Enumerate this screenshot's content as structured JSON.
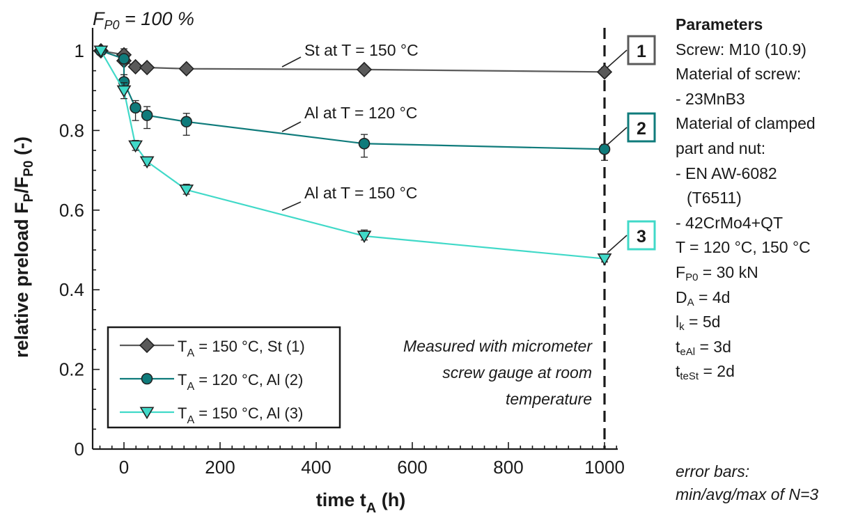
{
  "chart_data": {
    "type": "line",
    "fp0_label": "F",
    "fp0_sub": "P0",
    "fp0_rest": " = 100 %",
    "xlabel": {
      "main": "time t",
      "sub": "A",
      "rest": " (h)"
    },
    "ylabel": {
      "main": "relative preload F",
      "sub1": "P",
      "mid": "/F",
      "sub2": "P0",
      "rest": " (-)"
    },
    "xlim": [
      -60,
      1050
    ],
    "ylim": [
      0,
      1.05
    ],
    "xticks": [
      0,
      200,
      400,
      600,
      800,
      1000
    ],
    "yticks": [
      0,
      0.2,
      0.4,
      0.6,
      0.8,
      1
    ],
    "xtick_labels": [
      "0",
      "200",
      "400",
      "600",
      "800",
      "1000"
    ],
    "ytick_labels": [
      "0",
      "0.2",
      "0.4",
      "0.6",
      "0.8",
      "1"
    ],
    "grid": false,
    "legend_position": "bottom-left",
    "series": [
      {
        "name": "St (1)",
        "legend_T": "T",
        "legend_sub": "A",
        "legend_rest": " = 150 °C, St (1)",
        "color": "#5a5a5a",
        "marker": "diamond",
        "x": [
          -48,
          0,
          0,
          24,
          48,
          130,
          500,
          1000
        ],
        "y": [
          1.0,
          0.99,
          0.975,
          0.96,
          0.958,
          0.955,
          0.953,
          0.947
        ],
        "err_low": [
          0.99,
          0.975,
          0.965,
          0.955,
          0.952,
          0.945,
          0.945,
          0.938
        ],
        "err_high": [
          1.005,
          1.005,
          0.99,
          0.968,
          0.965,
          0.965,
          0.962,
          0.958
        ],
        "annotation": "St at T = 150 °C",
        "box_label": "1"
      },
      {
        "name": "Al (2)",
        "legend_T": "T",
        "legend_sub": "A",
        "legend_rest": " = 120 °C, Al (2)",
        "color": "#0f7b7b",
        "marker": "circle",
        "x": [
          -48,
          0,
          0,
          24,
          48,
          130,
          500,
          1000
        ],
        "y": [
          1.0,
          0.98,
          0.922,
          0.857,
          0.838,
          0.822,
          0.767,
          0.753
        ],
        "err_low": [
          0.99,
          0.97,
          0.905,
          0.825,
          0.805,
          0.788,
          0.733,
          0.725
        ],
        "err_high": [
          1.005,
          0.99,
          0.94,
          0.875,
          0.86,
          0.843,
          0.79,
          0.765
        ],
        "annotation": "Al at T = 120 °C",
        "box_label": "2"
      },
      {
        "name": "Al (3)",
        "legend_T": "T",
        "legend_sub": "A",
        "legend_rest": " = 150 °C, Al (3)",
        "color": "#40d9c8",
        "marker": "triangle-down",
        "x": [
          -48,
          0,
          24,
          48,
          130,
          500,
          1000
        ],
        "y": [
          1.0,
          0.9,
          0.762,
          0.722,
          0.651,
          0.535,
          0.478
        ],
        "err_low": [
          0.99,
          0.88,
          0.75,
          0.712,
          0.64,
          0.525,
          0.47
        ],
        "err_high": [
          1.005,
          0.92,
          0.775,
          0.733,
          0.665,
          0.55,
          0.486
        ],
        "annotation": "Al at T = 150 °C",
        "box_label": "3"
      }
    ],
    "vline_x": 1000,
    "measure_note": [
      "Measured with micrometer",
      "screw gauge at room",
      "temperature"
    ]
  },
  "parameters": {
    "title": "Parameters",
    "screw": "Screw: M10 (10.9)",
    "mat_screw": "Material of screw:",
    "mat_screw_val": "- 23MnB3",
    "mat_clamped1": "Material of clamped",
    "mat_clamped2": "part and nut:",
    "mat_clamped_val1": "- EN AW-6082",
    "mat_clamped_val2": "(T6511)",
    "mat_clamped_val3": "- 42CrMo4+QT",
    "temps": "T = 120 °C, 150 °C",
    "fp0": {
      "main": "F",
      "sub": "P0",
      "rest": " = 30 kN"
    },
    "da": {
      "main": "D",
      "sub": "A",
      "rest": " = 4d"
    },
    "lk": {
      "main": "l",
      "sub": "k",
      "rest": " = 5d"
    },
    "teal": {
      "main": "t",
      "sub": "eAl",
      "rest": " = 3d"
    },
    "test": {
      "main": "t",
      "sub": "teSt",
      "rest": " = 2d"
    }
  },
  "error_note": [
    "error bars:",
    "min/avg/max of N=3"
  ]
}
